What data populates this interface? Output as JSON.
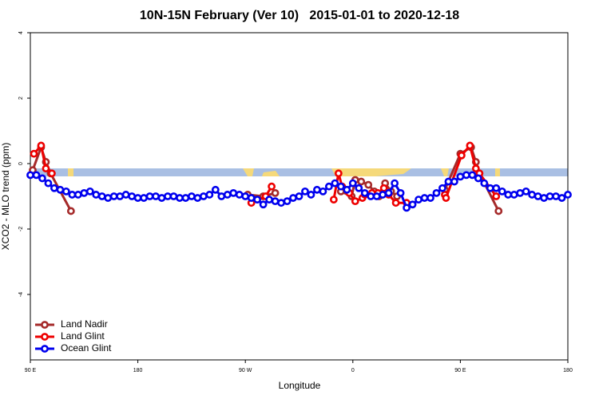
{
  "chart_data": {
    "type": "line",
    "title": "10N-15N February (Ver 10)   2015-01-01 to 2020-12-18",
    "x_label": "Longitude",
    "y_label": "XCO2 - MLO trend (ppm)",
    "xlim": [
      90,
      540
    ],
    "ylim": [
      -6,
      4
    ],
    "xticks": [
      {
        "value": 90,
        "label": "90 E"
      },
      180,
      {
        "value": 270,
        "label": "90 W"
      },
      {
        "value": 360,
        "label": "0"
      },
      {
        "value": 450,
        "label": "90 E"
      },
      {
        "value": 540,
        "label": "180"
      }
    ],
    "yticks": [
      -4,
      -2,
      0,
      2,
      4
    ],
    "legend": "bottom-left",
    "series": [
      {
        "name": "Land Nadir",
        "color": "#a52a2a",
        "x": [
          92,
          99,
          103,
          107,
          124,
          null,
          272,
          285,
          295,
          null,
          350,
          359,
          362,
          367,
          373,
          378,
          382,
          387,
          392,
          397,
          null,
          437,
          450,
          459,
          463,
          466,
          482
        ],
        "values": [
          -0.2,
          0.5,
          0.05,
          -0.3,
          -1.45,
          null,
          -0.95,
          -1.0,
          -0.9,
          null,
          -0.85,
          -1.0,
          -0.5,
          -0.55,
          -0.65,
          -0.85,
          -1.0,
          -0.6,
          -0.85,
          -1.0,
          null,
          -0.8,
          0.3,
          0.5,
          0.05,
          -0.3,
          -1.45
        ]
      },
      {
        "name": "Land Glint",
        "color": "#ee0000",
        "x": [
          93,
          99,
          103,
          108,
          null,
          275,
          287,
          292,
          null,
          344,
          348,
          351,
          357,
          362,
          368,
          370,
          376,
          381,
          386,
          390,
          396,
          405,
          null,
          437,
          438,
          451,
          458,
          463,
          466,
          480
        ],
        "values": [
          0.3,
          0.55,
          -0.15,
          -0.3,
          null,
          -1.2,
          -1.0,
          -0.7,
          null,
          -1.1,
          -0.3,
          -0.7,
          -0.9,
          -1.15,
          -1.05,
          -0.95,
          -0.9,
          -0.9,
          -0.75,
          -0.95,
          -1.2,
          -1.2,
          null,
          -0.95,
          -1.05,
          0.25,
          0.55,
          -0.15,
          -0.3,
          -1.0
        ]
      },
      {
        "name": "Ocean Glint",
        "color": "#0000ee",
        "x": [
          90,
          95,
          100,
          105,
          110,
          115,
          120,
          125,
          130,
          135,
          140,
          145,
          150,
          155,
          160,
          165,
          170,
          175,
          180,
          185,
          190,
          195,
          200,
          205,
          210,
          215,
          220,
          225,
          230,
          235,
          240,
          245,
          250,
          255,
          260,
          265,
          270,
          275,
          280,
          285,
          290,
          295,
          300,
          305,
          310,
          315,
          320,
          325,
          330,
          335,
          340,
          345,
          350,
          355,
          360,
          365,
          370,
          375,
          380,
          385,
          390,
          395,
          400,
          405,
          410,
          415,
          420,
          425,
          430,
          435,
          440,
          445,
          450,
          455,
          460,
          465,
          470,
          475,
          480,
          485,
          490,
          495,
          500,
          505,
          510,
          515,
          520,
          525,
          530,
          535,
          540
        ],
        "values": [
          -0.35,
          -0.35,
          -0.45,
          -0.6,
          -0.75,
          -0.8,
          -0.85,
          -0.95,
          -0.95,
          -0.9,
          -0.85,
          -0.95,
          -1.0,
          -1.05,
          -1.0,
          -1.0,
          -0.95,
          -1.0,
          -1.05,
          -1.05,
          -1.0,
          -1.0,
          -1.05,
          -1.0,
          -1.0,
          -1.05,
          -1.05,
          -1.0,
          -1.05,
          -1.0,
          -0.95,
          -0.8,
          -1.0,
          -0.95,
          -0.9,
          -0.95,
          -1.0,
          -1.05,
          -1.1,
          -1.25,
          -1.1,
          -1.15,
          -1.2,
          -1.15,
          -1.05,
          -1.0,
          -0.85,
          -0.95,
          -0.8,
          -0.85,
          -0.7,
          -0.6,
          -0.7,
          -0.8,
          -0.6,
          -0.75,
          -0.9,
          -1.0,
          -1.0,
          -0.95,
          -0.9,
          -0.6,
          -0.9,
          -1.35,
          -1.25,
          -1.1,
          -1.05,
          -1.05,
          -0.9,
          -0.75,
          -0.55,
          -0.55,
          -0.4,
          -0.35,
          -0.35,
          -0.45,
          -0.6,
          -0.75,
          -0.75,
          -0.85,
          -0.95,
          -0.95,
          -0.9,
          -0.85,
          -0.95,
          -1.0,
          -1.05,
          -1.0,
          -1.0,
          -1.05,
          -0.95
        ]
      }
    ]
  }
}
